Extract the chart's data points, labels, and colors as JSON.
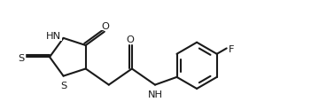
{
  "bg_color": "#ffffff",
  "line_color": "#1a1a1a",
  "line_width": 1.5,
  "font_size": 8.2,
  "figsize": [
    3.6,
    1.16
  ],
  "dpi": 100,
  "xlim": [
    0.0,
    9.8
  ],
  "ylim": [
    0.15,
    3.35
  ]
}
